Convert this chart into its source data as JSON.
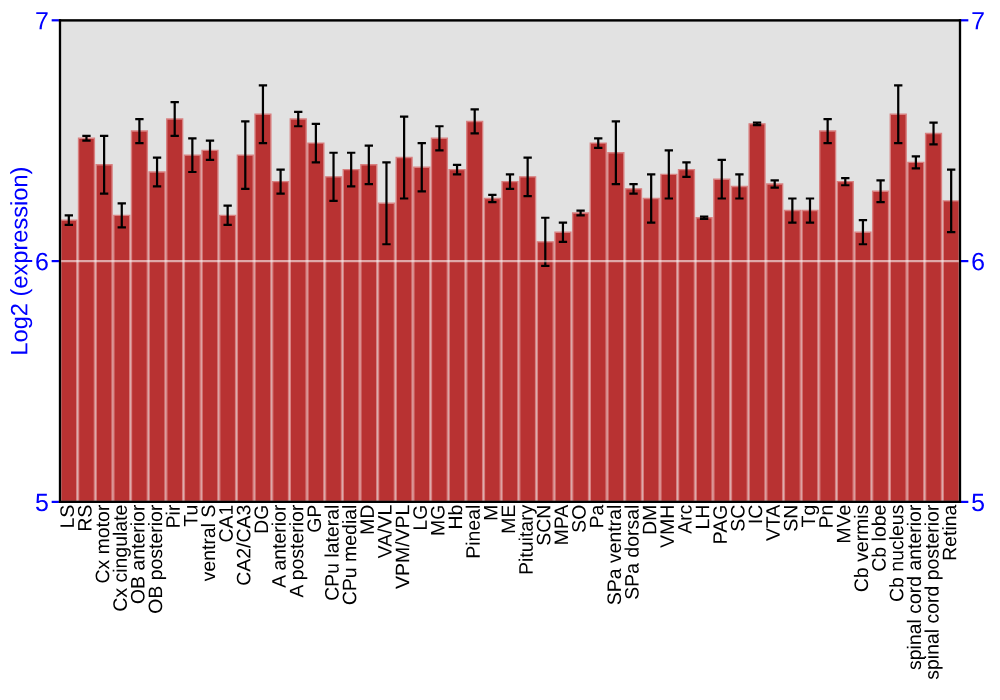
{
  "chart_data": {
    "type": "bar",
    "ylabel": "Log2 (expression)",
    "categories": [
      "LS",
      "RS",
      "Cx motor",
      "Cx cingulate",
      "OB anterior",
      "OB posterior",
      "Pir",
      "Tu",
      "ventral S",
      "CA1",
      "CA2/CA3",
      "DG",
      "A anterior",
      "A posterior",
      "GP",
      "CPu lateral",
      "CPu medial",
      "MD",
      "VA/VL",
      "VPM/VPL",
      "LG",
      "MG",
      "Hb",
      "Pineal",
      "M",
      "ME",
      "Pituitary",
      "SCN",
      "MPA",
      "SO",
      "Pa",
      "SPa ventral",
      "SPa dorsal",
      "DM",
      "VMH",
      "Arc",
      "LH",
      "PAG",
      "SC",
      "IC",
      "VTA",
      "SN",
      "Tg",
      "Pn",
      "MVe",
      "Cb vermis",
      "Cb lobe",
      "Cb nucleus",
      "spinal cord anterior",
      "spinal cord posterior",
      "Retina"
    ],
    "values": [
      6.17,
      6.51,
      6.4,
      6.19,
      6.54,
      6.37,
      6.59,
      6.44,
      6.46,
      6.19,
      6.44,
      6.61,
      6.33,
      6.59,
      6.49,
      6.35,
      6.38,
      6.4,
      6.24,
      6.43,
      6.39,
      6.51,
      6.38,
      6.58,
      6.26,
      6.33,
      6.35,
      6.08,
      6.12,
      6.2,
      6.49,
      6.45,
      6.3,
      6.26,
      6.36,
      6.38,
      6.18,
      6.34,
      6.31,
      6.57,
      6.32,
      6.21,
      6.21,
      6.54,
      6.33,
      6.12,
      6.29,
      6.61,
      6.41,
      6.53,
      6.25
    ],
    "errors": [
      0.02,
      0.01,
      0.12,
      0.05,
      0.05,
      0.06,
      0.07,
      0.07,
      0.04,
      0.04,
      0.14,
      0.12,
      0.05,
      0.03,
      0.08,
      0.1,
      0.07,
      0.08,
      0.17,
      0.17,
      0.1,
      0.05,
      0.02,
      0.05,
      0.015,
      0.03,
      0.08,
      0.1,
      0.04,
      0.01,
      0.02,
      0.13,
      0.02,
      0.1,
      0.1,
      0.03,
      0.005,
      0.08,
      0.05,
      0.005,
      0.015,
      0.05,
      0.05,
      0.05,
      0.015,
      0.05,
      0.045,
      0.12,
      0.025,
      0.045,
      0.13
    ],
    "color": "#b83232",
    "ylim": [
      5,
      7
    ],
    "yticks": [
      5,
      6,
      7
    ],
    "y2lim": [
      5,
      7
    ],
    "y2ticks": [
      5,
      6,
      7
    ],
    "ref_lines": [
      {
        "axis": "y",
        "value": 6,
        "color": "#f6f6f6"
      }
    ]
  }
}
